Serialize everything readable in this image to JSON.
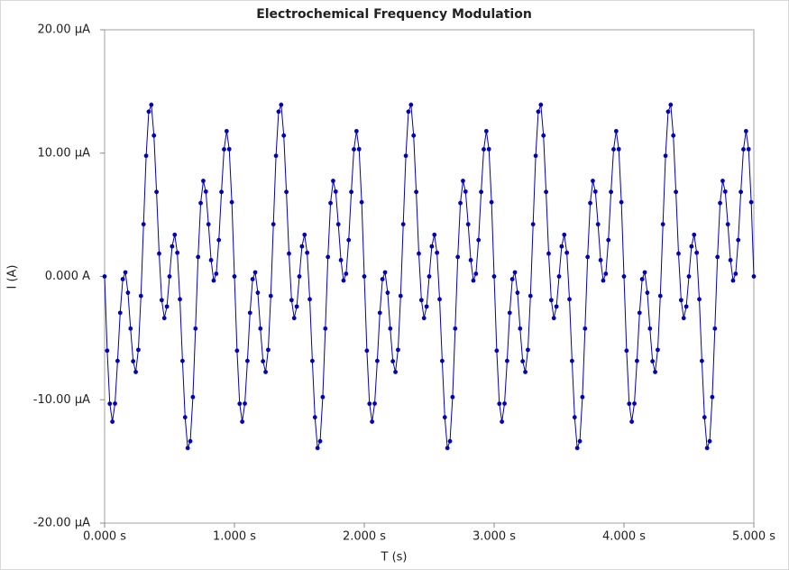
{
  "chart_data": {
    "type": "line",
    "title": "Electrochemical Frequency Modulation",
    "x_label": "T (s)",
    "y_label": "I (A)",
    "color": "#0000b4",
    "markers": true,
    "xlim": [
      0,
      5
    ],
    "ylim": [
      -2e-05,
      2e-05
    ],
    "xticks": [
      {
        "value": 0,
        "label": "0.000 s"
      },
      {
        "value": 1,
        "label": "1.000 s"
      },
      {
        "value": 2,
        "label": "2.000 s"
      },
      {
        "value": 3,
        "label": "3.000 s"
      },
      {
        "value": 4,
        "label": "4.000 s"
      },
      {
        "value": 5,
        "label": "5.000 s"
      }
    ],
    "yticks": [
      {
        "value": -2e-05,
        "label": "-20.00 µA"
      },
      {
        "value": -1e-05,
        "label": "-10.00 µA"
      },
      {
        "value": 0,
        "label": "0.000 A"
      },
      {
        "value": 1e-05,
        "label": "10.00 µA"
      },
      {
        "value": 2e-05,
        "label": "20.00 µA"
      }
    ],
    "x": [
      0,
      0.02,
      0.04,
      0.06,
      0.08,
      0.1,
      0.12,
      0.14,
      0.16,
      0.18,
      0.2,
      0.22,
      0.24,
      0.26,
      0.28,
      0.3,
      0.32,
      0.34,
      0.36,
      0.38,
      0.4,
      0.42,
      0.44,
      0.46,
      0.48,
      0.5,
      0.52,
      0.54,
      0.56,
      0.58,
      0.6,
      0.62,
      0.64,
      0.66,
      0.68,
      0.7,
      0.72,
      0.74,
      0.76,
      0.78,
      0.8,
      0.82,
      0.84,
      0.86,
      0.88,
      0.9,
      0.92,
      0.94,
      0.96,
      0.98,
      1,
      1.02,
      1.04,
      1.06,
      1.08,
      1.1,
      1.12,
      1.14,
      1.16,
      1.18,
      1.2,
      1.22,
      1.24,
      1.26,
      1.28,
      1.3,
      1.32,
      1.34,
      1.36,
      1.38,
      1.4,
      1.42,
      1.44,
      1.46,
      1.48,
      1.5,
      1.52,
      1.54,
      1.56,
      1.58,
      1.6,
      1.62,
      1.64,
      1.66,
      1.68,
      1.7,
      1.72,
      1.74,
      1.76,
      1.78,
      1.8,
      1.82,
      1.84,
      1.86,
      1.88,
      1.9,
      1.92,
      1.94,
      1.96,
      1.98,
      2,
      2.02,
      2.04,
      2.06,
      2.08,
      2.1,
      2.12,
      2.14,
      2.16,
      2.18,
      2.2,
      2.22,
      2.24,
      2.26,
      2.28,
      2.3,
      2.32,
      2.34,
      2.36,
      2.38,
      2.4,
      2.42,
      2.44,
      2.46,
      2.48,
      2.5,
      2.52,
      2.54,
      2.56,
      2.58,
      2.6,
      2.62,
      2.64,
      2.66,
      2.68,
      2.7,
      2.72,
      2.74,
      2.76,
      2.78,
      2.8,
      2.82,
      2.84,
      2.86,
      2.88,
      2.9,
      2.92,
      2.94,
      2.96,
      2.98,
      3,
      3.02,
      3.04,
      3.06,
      3.08,
      3.1,
      3.12,
      3.14,
      3.16,
      3.18,
      3.2,
      3.22,
      3.24,
      3.26,
      3.28,
      3.3,
      3.32,
      3.34,
      3.36,
      3.38,
      3.4,
      3.42,
      3.44,
      3.46,
      3.48,
      3.5,
      3.52,
      3.54,
      3.56,
      3.58,
      3.6,
      3.62,
      3.64,
      3.66,
      3.68,
      3.7,
      3.72,
      3.74,
      3.76,
      3.78,
      3.8,
      3.82,
      3.84,
      3.86,
      3.88,
      3.9,
      3.92,
      3.94,
      3.96,
      3.98,
      4,
      4.02,
      4.04,
      4.06,
      4.08,
      4.1,
      4.12,
      4.14,
      4.16,
      4.18,
      4.2,
      4.22,
      4.24,
      4.26,
      4.28,
      4.3,
      4.32,
      4.34,
      4.36,
      4.38,
      4.4,
      4.42,
      4.44,
      4.46,
      4.48,
      4.5,
      4.52,
      4.54,
      4.56,
      4.58,
      4.6,
      4.62,
      4.64,
      4.66,
      4.68,
      4.7,
      4.72,
      4.74,
      4.76,
      4.78,
      4.8,
      4.82,
      4.84,
      4.86,
      4.88,
      4.9,
      4.92,
      4.94,
      4.96,
      4.98,
      5
    ],
    "values": [
      0,
      -6.02e-06,
      -1.032e-05,
      -1.178e-05,
      -1.031e-05,
      -6.85e-06,
      -2.95e-06,
      -2.2e-07,
      3.3e-07,
      -1.32e-06,
      -4.23e-06,
      -6.88e-06,
      -7.75e-06,
      -5.95e-06,
      -1.58e-06,
      4.23e-06,
      9.78e-06,
      1.336e-05,
      1.392e-05,
      1.142e-05,
      6.85e-06,
      1.85e-06,
      -1.92e-06,
      -3.38e-06,
      -2.44e-06,
      0,
      2.44e-06,
      3.38e-06,
      1.92e-06,
      -1.85e-06,
      -6.85e-06,
      -1.142e-05,
      -1.392e-05,
      -1.336e-05,
      -9.78e-06,
      -4.23e-06,
      1.58e-06,
      5.95e-06,
      7.75e-06,
      6.88e-06,
      4.23e-06,
      1.32e-06,
      -3.3e-07,
      2.2e-07,
      2.95e-06,
      6.85e-06,
      1.031e-05,
      1.178e-05,
      1.032e-05,
      6.02e-06,
      0,
      -6.02e-06,
      -1.032e-05,
      -1.178e-05,
      -1.031e-05,
      -6.85e-06,
      -2.95e-06,
      -2.2e-07,
      3.3e-07,
      -1.32e-06,
      -4.23e-06,
      -6.88e-06,
      -7.75e-06,
      -5.95e-06,
      -1.58e-06,
      4.23e-06,
      9.78e-06,
      1.336e-05,
      1.392e-05,
      1.142e-05,
      6.85e-06,
      1.85e-06,
      -1.92e-06,
      -3.38e-06,
      -2.44e-06,
      0,
      2.44e-06,
      3.38e-06,
      1.92e-06,
      -1.85e-06,
      -6.85e-06,
      -1.142e-05,
      -1.392e-05,
      -1.336e-05,
      -9.78e-06,
      -4.23e-06,
      1.58e-06,
      5.95e-06,
      7.75e-06,
      6.88e-06,
      4.23e-06,
      1.32e-06,
      -3.3e-07,
      2.2e-07,
      2.95e-06,
      6.85e-06,
      1.031e-05,
      1.178e-05,
      1.032e-05,
      6.02e-06,
      0,
      -6.02e-06,
      -1.032e-05,
      -1.178e-05,
      -1.031e-05,
      -6.85e-06,
      -2.95e-06,
      -2.2e-07,
      3.3e-07,
      -1.32e-06,
      -4.23e-06,
      -6.88e-06,
      -7.75e-06,
      -5.95e-06,
      -1.58e-06,
      4.23e-06,
      9.78e-06,
      1.336e-05,
      1.392e-05,
      1.142e-05,
      6.85e-06,
      1.85e-06,
      -1.92e-06,
      -3.38e-06,
      -2.44e-06,
      0,
      2.44e-06,
      3.38e-06,
      1.92e-06,
      -1.85e-06,
      -6.85e-06,
      -1.142e-05,
      -1.392e-05,
      -1.336e-05,
      -9.78e-06,
      -4.23e-06,
      1.58e-06,
      5.95e-06,
      7.75e-06,
      6.88e-06,
      4.23e-06,
      1.32e-06,
      -3.3e-07,
      2.2e-07,
      2.95e-06,
      6.85e-06,
      1.031e-05,
      1.178e-05,
      1.032e-05,
      6.02e-06,
      0,
      -6.02e-06,
      -1.032e-05,
      -1.178e-05,
      -1.031e-05,
      -6.85e-06,
      -2.95e-06,
      -2.2e-07,
      3.3e-07,
      -1.32e-06,
      -4.23e-06,
      -6.88e-06,
      -7.75e-06,
      -5.95e-06,
      -1.58e-06,
      4.23e-06,
      9.78e-06,
      1.336e-05,
      1.392e-05,
      1.142e-05,
      6.85e-06,
      1.85e-06,
      -1.92e-06,
      -3.38e-06,
      -2.44e-06,
      0,
      2.44e-06,
      3.38e-06,
      1.92e-06,
      -1.85e-06,
      -6.85e-06,
      -1.142e-05,
      -1.392e-05,
      -1.336e-05,
      -9.78e-06,
      -4.23e-06,
      1.58e-06,
      5.95e-06,
      7.75e-06,
      6.88e-06,
      4.23e-06,
      1.32e-06,
      -3.3e-07,
      2.2e-07,
      2.95e-06,
      6.85e-06,
      1.031e-05,
      1.178e-05,
      1.032e-05,
      6.02e-06,
      0,
      -6.02e-06,
      -1.032e-05,
      -1.178e-05,
      -1.031e-05,
      -6.85e-06,
      -2.95e-06,
      -2.2e-07,
      3.3e-07,
      -1.32e-06,
      -4.23e-06,
      -6.88e-06,
      -7.75e-06,
      -5.95e-06,
      -1.58e-06,
      4.23e-06,
      9.78e-06,
      1.336e-05,
      1.392e-05,
      1.142e-05,
      6.85e-06,
      1.85e-06,
      -1.92e-06,
      -3.38e-06,
      -2.44e-06,
      0,
      2.44e-06,
      3.38e-06,
      1.92e-06,
      -1.85e-06,
      -6.85e-06,
      -1.142e-05,
      -1.392e-05,
      -1.336e-05,
      -9.78e-06,
      -4.23e-06,
      1.58e-06,
      5.95e-06,
      7.75e-06,
      6.88e-06,
      4.23e-06,
      1.32e-06,
      -3.3e-07,
      2.2e-07,
      2.95e-06,
      6.85e-06,
      1.031e-05,
      1.178e-05,
      1.032e-05,
      6.02e-06,
      0
    ]
  }
}
